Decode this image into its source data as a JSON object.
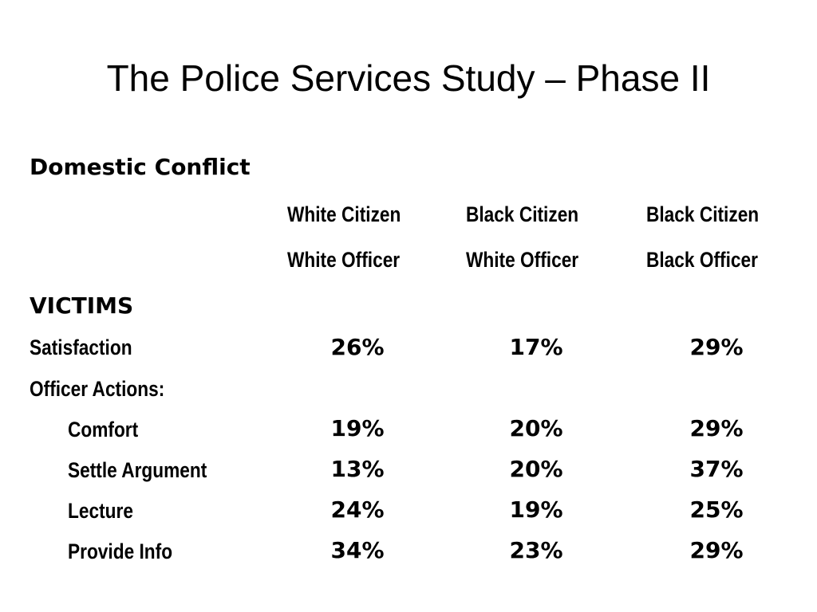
{
  "title": "The Police Services Study – Phase II",
  "section": "Domestic Conflict",
  "columns": [
    {
      "line1": "White Citizen",
      "line2": "White Officer"
    },
    {
      "line1": "Black Citizen",
      "line2": "White Officer"
    },
    {
      "line1": "Black Citizen",
      "line2": "Black Officer"
    }
  ],
  "victims_heading": "VICTIMS",
  "rows": [
    {
      "label": "Satisfaction",
      "values": [
        "26%",
        "17%",
        "29%"
      ]
    },
    {
      "label": "Officer Actions:",
      "values": []
    },
    {
      "label": "Comfort",
      "values": [
        "19%",
        "20%",
        "29%"
      ]
    },
    {
      "label": "Settle Argument",
      "values": [
        "13%",
        "20%",
        "37%"
      ]
    },
    {
      "label": "Lecture",
      "values": [
        "24%",
        "19%",
        "25%"
      ]
    },
    {
      "label": "Provide Info",
      "values": [
        "34%",
        "23%",
        "29%"
      ]
    }
  ]
}
